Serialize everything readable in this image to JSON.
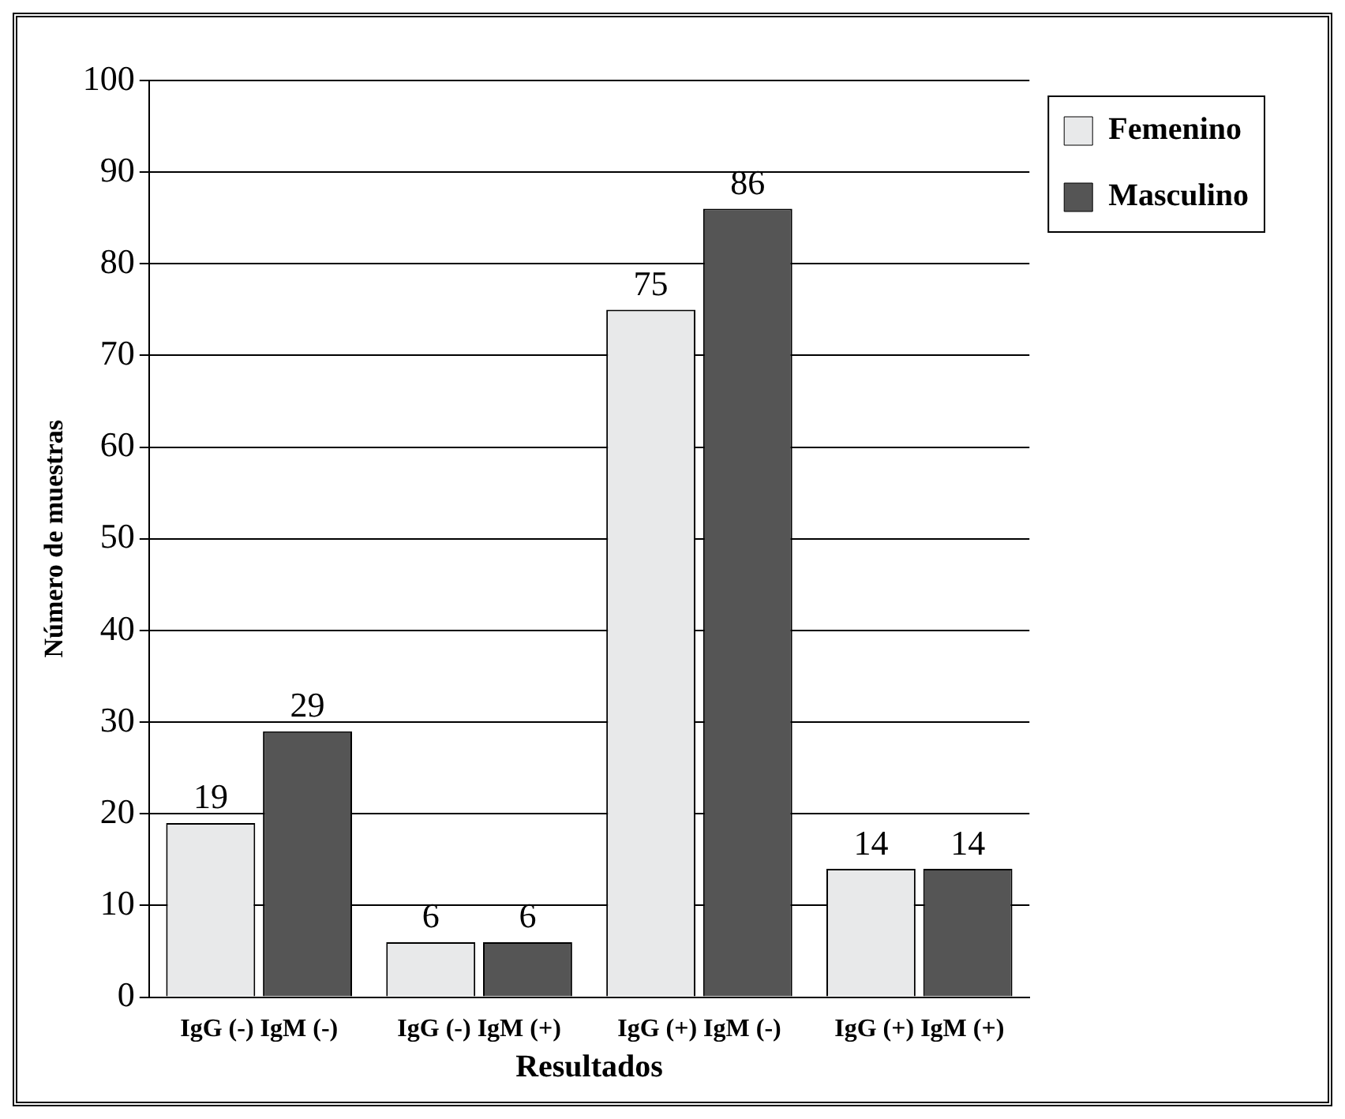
{
  "chart_data": {
    "type": "bar",
    "xlabel": "Resultados",
    "ylabel": "Número de muestras",
    "categories": [
      "IgG (-) IgM (-)",
      "IgG (-) IgM (+)",
      "IgG (+) IgM (-)",
      "IgG (+) IgM (+)"
    ],
    "series": [
      {
        "name": "Femenino",
        "color": "#e8e9ea",
        "values": [
          19,
          6,
          75,
          14
        ]
      },
      {
        "name": "Masculino",
        "color": "#555555",
        "values": [
          29,
          6,
          86,
          14
        ]
      }
    ],
    "ylim": [
      0,
      100
    ],
    "yticks": [
      0,
      10,
      20,
      30,
      40,
      50,
      60,
      70,
      80,
      90,
      100
    ],
    "grid": "y",
    "legend": "top right",
    "data_labels": true
  }
}
